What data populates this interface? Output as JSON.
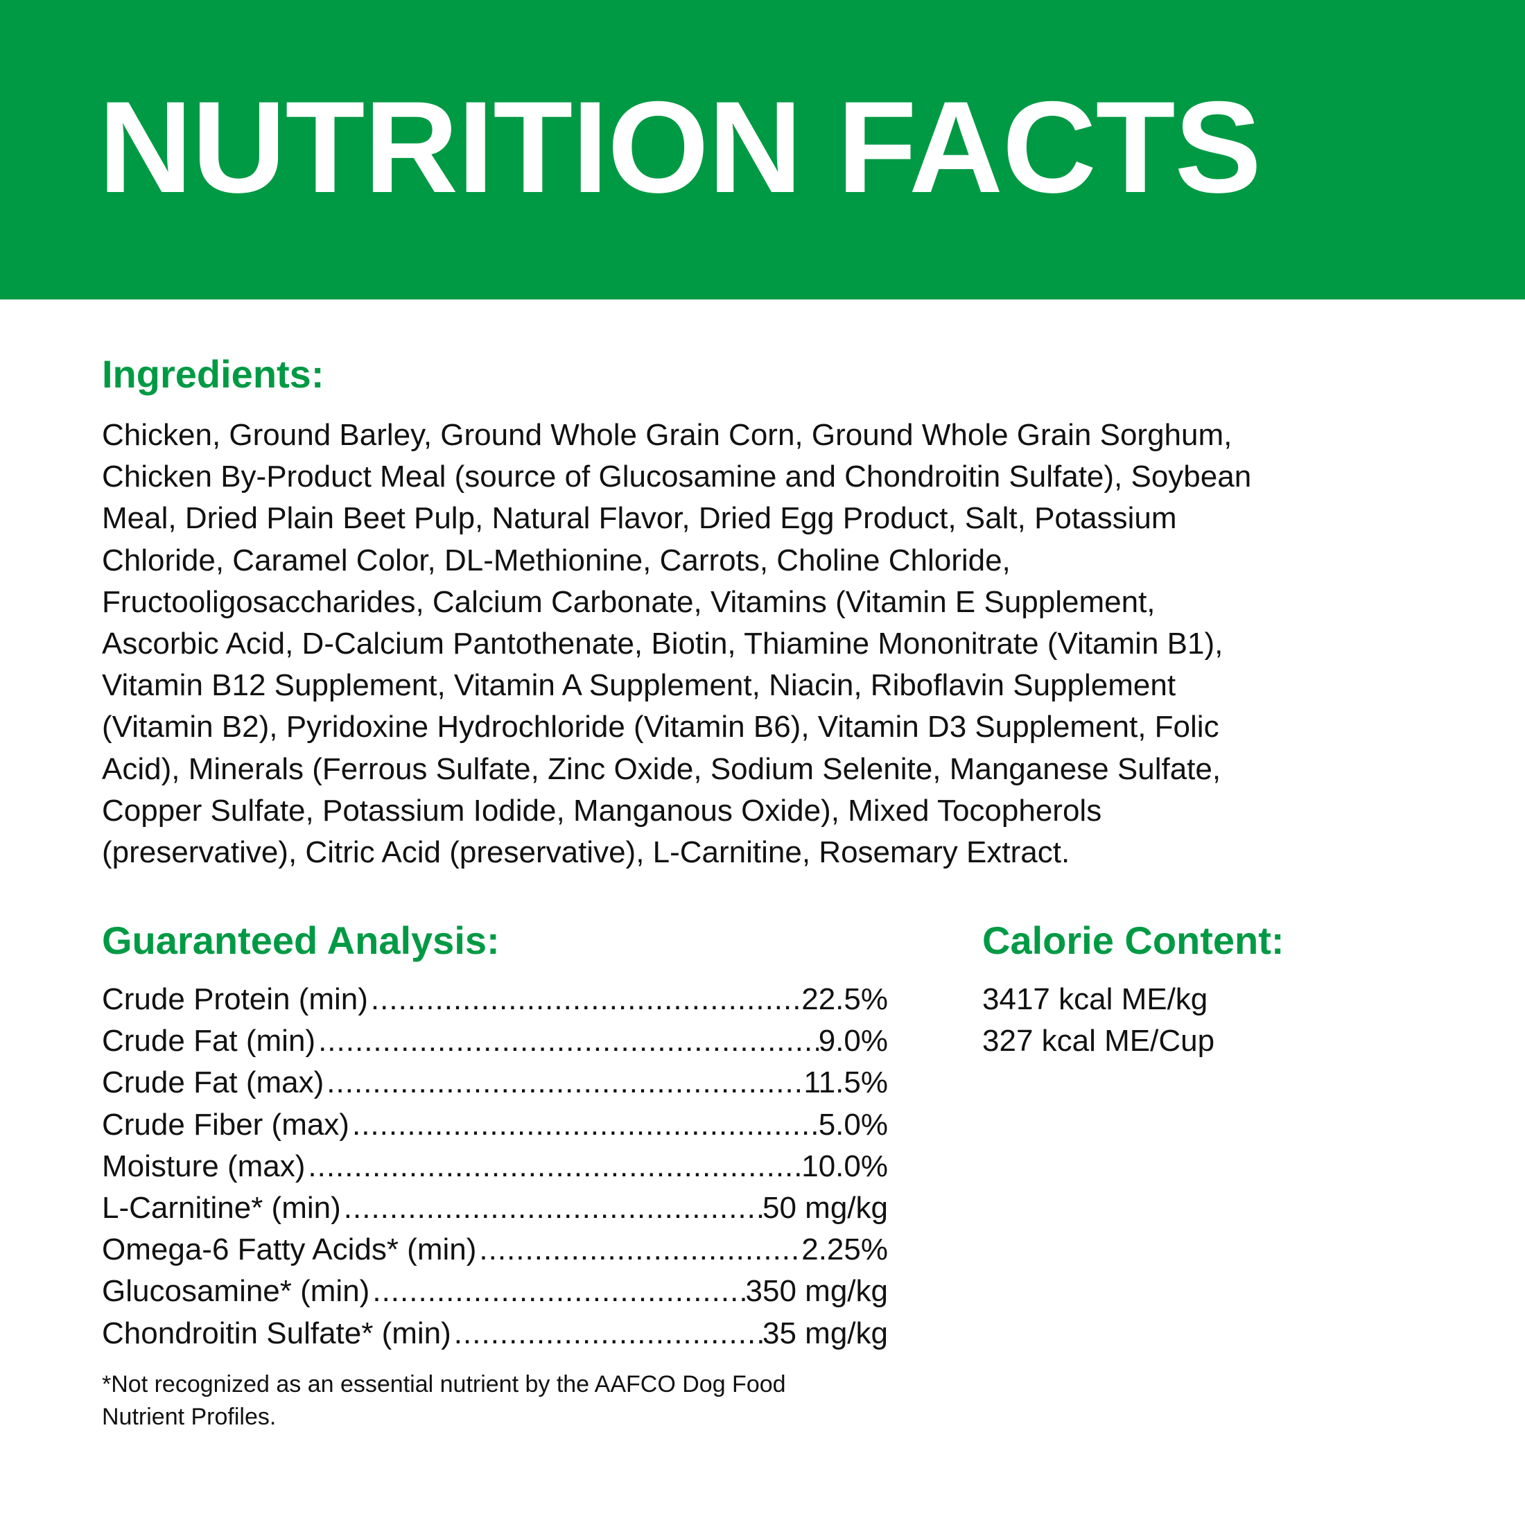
{
  "header": {
    "title": "NUTRITION FACTS",
    "background_color": "#009a44"
  },
  "ingredients": {
    "heading": "Ingredients:",
    "lines": [
      "Chicken, Ground Barley, Ground Whole Grain Corn, Ground Whole Grain Sorghum,",
      "Chicken By-Product Meal (source of Glucosamine and Chondroitin Sulfate), Soybean",
      "Meal, Dried Plain Beet Pulp, Natural Flavor, Dried Egg Product, Salt, Potassium",
      "Chloride, Caramel Color, DL-Methionine, Carrots, Choline Chloride,",
      "Fructooligosaccharides, Calcium Carbonate, Vitamins (Vitamin E Supplement,",
      "Ascorbic Acid, D-Calcium Pantothenate, Biotin, Thiamine Mononitrate (Vitamin B1),",
      "Vitamin B12 Supplement, Vitamin A Supplement, Niacin, Riboflavin Supplement",
      "(Vitamin B2), Pyridoxine Hydrochloride (Vitamin B6), Vitamin D3 Supplement, Folic",
      "Acid), Minerals (Ferrous Sulfate, Zinc Oxide, Sodium Selenite, Manganese Sulfate,",
      "Copper Sulfate, Potassium Iodide, Manganous Oxide), Mixed Tocopherols",
      "(preservative), Citric Acid (preservative), L-Carnitine, Rosemary Extract."
    ]
  },
  "analysis": {
    "heading": "Guaranteed Analysis:",
    "rows": [
      {
        "label": "Crude Protein (min)",
        "value": "22.5%"
      },
      {
        "label": "Crude Fat (min)",
        "value": "9.0%"
      },
      {
        "label": "Crude Fat (max)",
        "value": "11.5%"
      },
      {
        "label": "Crude Fiber (max)",
        "value": "5.0%"
      },
      {
        "label": "Moisture (max)",
        "value": "10.0%"
      },
      {
        "label": "L-Carnitine* (min)",
        "value": "50 mg/kg"
      },
      {
        "label": "Omega-6 Fatty Acids* (min)",
        "value": "2.25%"
      },
      {
        "label": "Glucosamine* (min)",
        "value": "350 mg/kg"
      },
      {
        "label": "Chondroitin Sulfate* (min)",
        "value": "35 mg/kg"
      }
    ],
    "footnote_lines": [
      "*Not recognized as an essential nutrient by the AAFCO Dog Food",
      "Nutrient Profiles."
    ]
  },
  "calorie": {
    "heading": "Calorie Content:",
    "lines": [
      "3417 kcal ME/kg",
      "327 kcal ME/Cup"
    ]
  },
  "accent_color": "#009a44"
}
